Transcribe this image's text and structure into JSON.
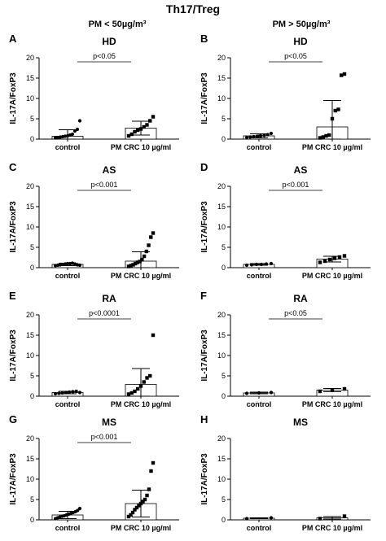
{
  "header": {
    "title": "Th17/Treg",
    "col_left": "PM < 50µg/m³",
    "col_right": "PM > 50µg/m³"
  },
  "chart_data": [
    {
      "type": "scatter",
      "letter": "A",
      "title": "HD",
      "ylabel": "IL-17A/FoxP3",
      "ylim": [
        0,
        20
      ],
      "yticks": [
        0,
        5,
        10,
        15,
        20
      ],
      "categories": [
        "control",
        "PM CRC 10 µg/ml"
      ],
      "means": [
        0.7,
        2.7
      ],
      "sds": [
        1.6,
        1.7
      ],
      "points": [
        [
          0.3,
          0.4,
          0.5,
          0.6,
          0.7,
          0.8,
          1.0,
          1.2,
          2.0,
          2.4,
          4.5
        ],
        [
          0.8,
          1.2,
          1.8,
          2.2,
          2.5,
          3.0,
          3.5,
          4.5,
          5.5
        ]
      ],
      "sig": "p<0.05"
    },
    {
      "type": "scatter",
      "letter": "B",
      "title": "HD",
      "ylabel": "IL-17A/FoxP3",
      "ylim": [
        0,
        20
      ],
      "yticks": [
        0,
        5,
        10,
        15,
        20
      ],
      "categories": [
        "control",
        "PM CRC 10 µg/ml"
      ],
      "means": [
        0.8,
        3.0
      ],
      "sds": [
        0.5,
        6.5
      ],
      "points": [
        [
          0.4,
          0.5,
          0.6,
          0.7,
          0.8,
          0.9,
          1.1,
          1.4
        ],
        [
          0.3,
          0.5,
          0.8,
          1.0,
          5.0,
          7.0,
          7.3,
          15.7,
          16.0
        ]
      ],
      "sig": "p<0.05"
    },
    {
      "type": "scatter",
      "letter": "C",
      "title": "AS",
      "ylabel": "IL-17A/FoxP3",
      "ylim": [
        0,
        20
      ],
      "yticks": [
        0,
        5,
        10,
        15,
        20
      ],
      "categories": [
        "control",
        "PM CRC 10 µg/ml"
      ],
      "means": [
        0.8,
        1.6
      ],
      "sds": [
        0.3,
        2.3
      ],
      "points": [
        [
          0.5,
          0.6,
          0.7,
          0.8,
          0.9,
          1.0,
          1.0,
          1.1,
          0.9,
          0.7,
          0.6
        ],
        [
          0.3,
          0.5,
          0.7,
          1.0,
          1.3,
          1.5,
          2.0,
          2.8,
          4.0,
          5.5,
          7.5,
          8.5
        ]
      ],
      "sig": "p<0.001"
    },
    {
      "type": "scatter",
      "letter": "D",
      "title": "AS",
      "ylabel": "IL-17A/FoxP3",
      "ylim": [
        0,
        20
      ],
      "yticks": [
        0,
        5,
        10,
        15,
        20
      ],
      "categories": [
        "control",
        "PM CRC 10 µg/ml"
      ],
      "means": [
        0.8,
        2.1
      ],
      "sds": [
        0.2,
        0.7
      ],
      "points": [
        [
          0.6,
          0.7,
          0.8,
          0.8,
          0.9,
          1.0
        ],
        [
          1.3,
          1.6,
          2.0,
          2.3,
          2.6,
          2.9
        ]
      ],
      "sig": "p<0.001"
    },
    {
      "type": "scatter",
      "letter": "E",
      "title": "RA",
      "ylabel": "IL-17A/FoxP3",
      "ylim": [
        0,
        20
      ],
      "yticks": [
        0,
        5,
        10,
        15,
        20
      ],
      "categories": [
        "control",
        "PM CRC 10 µg/ml"
      ],
      "means": [
        0.9,
        2.9
      ],
      "sds": [
        0.3,
        3.9
      ],
      "points": [
        [
          0.6,
          0.7,
          0.8,
          0.9,
          1.0,
          1.1,
          1.2,
          0.9
        ],
        [
          0.5,
          0.8,
          1.2,
          1.8,
          2.5,
          3.5,
          4.5,
          5.0,
          15.0
        ]
      ],
      "sig": "p<0.0001"
    },
    {
      "type": "scatter",
      "letter": "F",
      "title": "RA",
      "ylabel": "IL-17A/FoxP3",
      "ylim": [
        0,
        20
      ],
      "yticks": [
        0,
        5,
        10,
        15,
        20
      ],
      "categories": [
        "control",
        "PM CRC 10 µg/ml"
      ],
      "means": [
        0.8,
        1.5
      ],
      "sds": [
        0.2,
        0.4
      ],
      "points": [
        [
          0.7,
          0.8,
          0.9
        ],
        [
          1.2,
          1.5,
          1.8
        ]
      ],
      "sig": "p<0.05"
    },
    {
      "type": "scatter",
      "letter": "G",
      "title": "MS",
      "ylabel": "IL-17A/FoxP3",
      "ylim": [
        0,
        20
      ],
      "yticks": [
        0,
        5,
        10,
        15,
        20
      ],
      "categories": [
        "control",
        "PM CRC 10 µg/ml"
      ],
      "means": [
        1.2,
        4.0
      ],
      "sds": [
        0.9,
        3.3
      ],
      "points": [
        [
          0.3,
          0.5,
          0.7,
          0.9,
          1.0,
          1.2,
          1.4,
          1.6,
          1.8,
          2.0,
          2.3,
          2.8
        ],
        [
          0.8,
          1.2,
          1.8,
          2.5,
          3.0,
          3.5,
          4.0,
          4.5,
          5.0,
          6.0,
          7.5,
          12.0,
          14.0
        ]
      ],
      "sig": "p<0.001"
    },
    {
      "type": "scatter",
      "letter": "H",
      "title": "MS",
      "ylabel": "IL-17A/FoxP3",
      "ylim": [
        0,
        20
      ],
      "yticks": [
        0,
        5,
        10,
        15,
        20
      ],
      "categories": [
        "control",
        "PM CRC 10 µg/ml"
      ],
      "means": [
        0.4,
        0.5
      ],
      "sds": [
        0.1,
        0.3
      ],
      "points": [
        [
          0.3,
          0.5
        ],
        [
          0.3,
          0.9
        ]
      ],
      "sig": ""
    }
  ]
}
